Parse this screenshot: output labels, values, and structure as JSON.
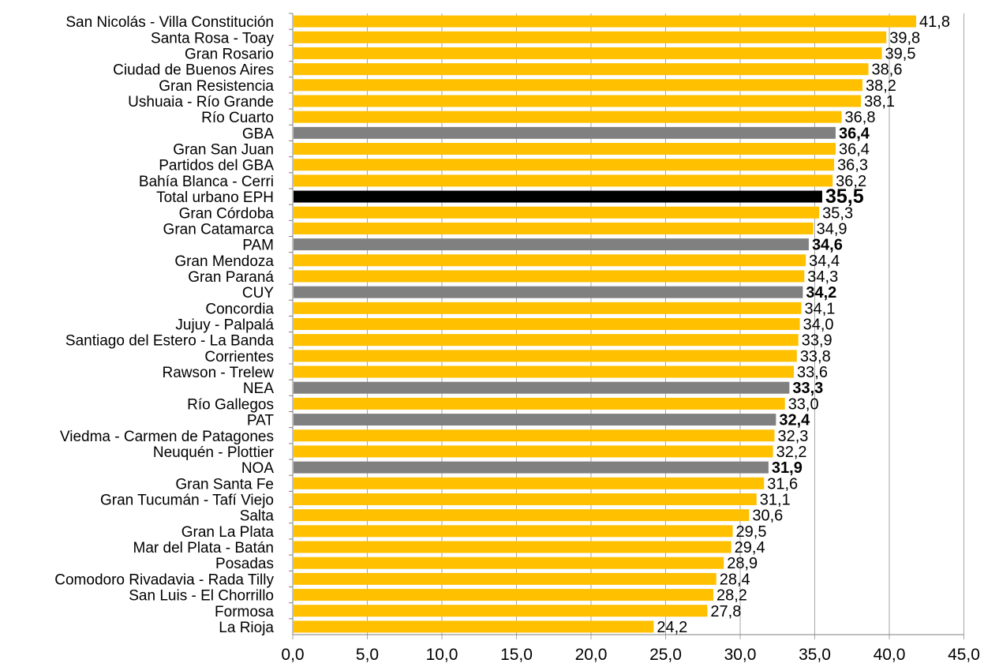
{
  "chart_data": {
    "type": "bar",
    "orientation": "horizontal",
    "grid": "vertical-major",
    "xlim": [
      0,
      45
    ],
    "x_ticks": [
      "0,0",
      "5,0",
      "10,0",
      "15,0",
      "20,0",
      "25,0",
      "30,0",
      "35,0",
      "40,0",
      "45,0"
    ],
    "x_tick_values": [
      0,
      5,
      10,
      15,
      20,
      25,
      30,
      35,
      40,
      45
    ],
    "categories": [
      "San Nicolás - Villa Constitución",
      "Santa Rosa - Toay",
      "Gran Rosario",
      "Ciudad de Buenos Aires",
      "Gran Resistencia",
      "Ushuaia - Río Grande",
      "Río Cuarto",
      "GBA",
      "Gran San Juan",
      "Partidos del GBA",
      "Bahía Blanca - Cerri",
      "Total urbano EPH",
      "Gran Córdoba",
      "Gran Catamarca",
      "PAM",
      "Gran Mendoza",
      "Gran Paraná",
      "CUY",
      "Concordia",
      "Jujuy - Palpalá",
      "Santiago del Estero - La Banda",
      "Corrientes",
      "Rawson - Trelew",
      "NEA",
      "Río Gallegos",
      "PAT",
      "Viedma - Carmen de Patagones",
      "Neuquén - Plottier",
      "NOA",
      "Gran Santa Fe",
      "Gran Tucumán - Tafí Viejo",
      "Salta",
      "Gran La Plata",
      "Mar del Plata - Batán",
      "Posadas",
      "Comodoro Rivadavia - Rada Tilly",
      "San Luis - El Chorrillo",
      "Formosa",
      "La Rioja"
    ],
    "values": [
      41.8,
      39.8,
      39.5,
      38.6,
      38.2,
      38.1,
      36.8,
      36.4,
      36.4,
      36.3,
      36.2,
      35.5,
      35.3,
      34.9,
      34.6,
      34.4,
      34.3,
      34.2,
      34.1,
      34.0,
      33.9,
      33.8,
      33.6,
      33.3,
      33.0,
      32.4,
      32.3,
      32.2,
      31.9,
      31.6,
      31.1,
      30.6,
      29.5,
      29.4,
      28.9,
      28.4,
      28.2,
      27.8,
      24.2
    ],
    "value_labels": [
      "41,8",
      "39,8",
      "39,5",
      "38,6",
      "38,2",
      "38,1",
      "36,8",
      "36,4",
      "36,4",
      "36,3",
      "36,2",
      "35,5",
      "35,3",
      "34,9",
      "34,6",
      "34,4",
      "34,3",
      "34,2",
      "34,1",
      "34,0",
      "33,9",
      "33,8",
      "33,6",
      "33,3",
      "33,0",
      "32,4",
      "32,3",
      "32,2",
      "31,9",
      "31,6",
      "31,1",
      "30,6",
      "29,5",
      "29,4",
      "28,9",
      "28,4",
      "28,2",
      "27,8",
      "24,2"
    ],
    "kinds": [
      "city",
      "city",
      "city",
      "city",
      "city",
      "city",
      "city",
      "region",
      "city",
      "city",
      "city",
      "total",
      "city",
      "city",
      "region",
      "city",
      "city",
      "region",
      "city",
      "city",
      "city",
      "city",
      "city",
      "region",
      "city",
      "region",
      "city",
      "city",
      "region",
      "city",
      "city",
      "city",
      "city",
      "city",
      "city",
      "city",
      "city",
      "city",
      "city"
    ],
    "colors": {
      "city": "#FFC000",
      "region": "#808080",
      "total": "#000000",
      "grid": "#A6A6A6",
      "text": "#000000"
    }
  }
}
